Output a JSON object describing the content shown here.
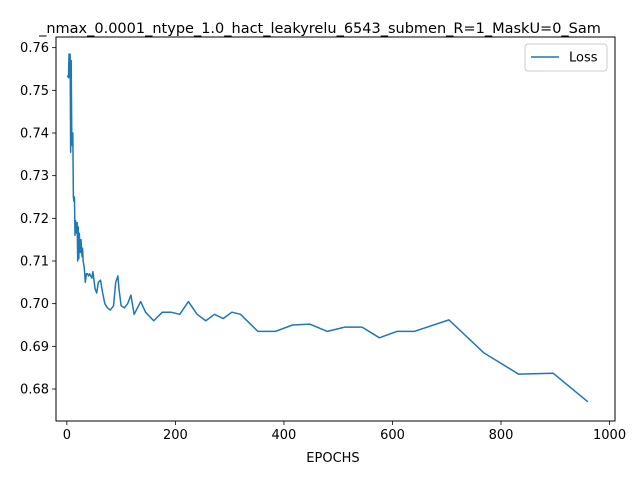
{
  "chart_data": {
    "type": "line",
    "title": "_nmax_0.0001_ntype_1.0_hact_leakyrelu_6543_submen_R=1_MaskU=0_Sam",
    "xlabel": "EPOCHS",
    "ylabel": "",
    "xlim": [
      -20,
      1010
    ],
    "ylim": [
      0.6725,
      0.7625
    ],
    "xticks": [
      0,
      200,
      400,
      600,
      800,
      1000
    ],
    "yticks": [
      0.68,
      0.69,
      0.7,
      0.71,
      0.72,
      0.73,
      0.74,
      0.75,
      0.76
    ],
    "ytick_labels": [
      "0.68",
      "0.69",
      "0.70",
      "0.71",
      "0.72",
      "0.73",
      "0.74",
      "0.75",
      "0.76"
    ],
    "legend_position": "top-right",
    "colors": {
      "line": "#1f77b4"
    },
    "series": [
      {
        "name": "Loss",
        "x": [
          1,
          3,
          4,
          5,
          6,
          7,
          8,
          9,
          10,
          11,
          12,
          13,
          14,
          15,
          16,
          17,
          18,
          19,
          20,
          21,
          22,
          23,
          24,
          25,
          26,
          27,
          28,
          29,
          30,
          32,
          34,
          36,
          38,
          40,
          42,
          44,
          46,
          48,
          50,
          52,
          55,
          58,
          62,
          66,
          70,
          75,
          80,
          86,
          90,
          94,
          96,
          100,
          106,
          112,
          118,
          124,
          130,
          136,
          145,
          160,
          176,
          192,
          208,
          224,
          240,
          256,
          272,
          288,
          304,
          320,
          352,
          384,
          416,
          448,
          480,
          512,
          544,
          576,
          608,
          640,
          704,
          768,
          832,
          896,
          960
        ],
        "values": [
          0.7535,
          0.753,
          0.7585,
          0.753,
          0.7585,
          0.7355,
          0.757,
          0.74,
          0.737,
          0.74,
          0.725,
          0.724,
          0.725,
          0.716,
          0.7195,
          0.7175,
          0.7165,
          0.719,
          0.71,
          0.718,
          0.7105,
          0.7165,
          0.7135,
          0.712,
          0.715,
          0.713,
          0.711,
          0.713,
          0.71,
          0.7085,
          0.705,
          0.707,
          0.707,
          0.7065,
          0.707,
          0.7065,
          0.706,
          0.7075,
          0.7055,
          0.7035,
          0.7025,
          0.705,
          0.7055,
          0.7025,
          0.7,
          0.699,
          0.6985,
          0.6995,
          0.705,
          0.7065,
          0.7035,
          0.6995,
          0.699,
          0.7,
          0.702,
          0.6975,
          0.699,
          0.7005,
          0.698,
          0.696,
          0.698,
          0.698,
          0.6975,
          0.7005,
          0.6975,
          0.696,
          0.6975,
          0.6965,
          0.698,
          0.6975,
          0.6935,
          0.6935,
          0.695,
          0.6952,
          0.6935,
          0.6945,
          0.6945,
          0.692,
          0.6935,
          0.6935,
          0.6962,
          0.6885,
          0.6835,
          0.6837,
          0.677
        ]
      }
    ]
  }
}
